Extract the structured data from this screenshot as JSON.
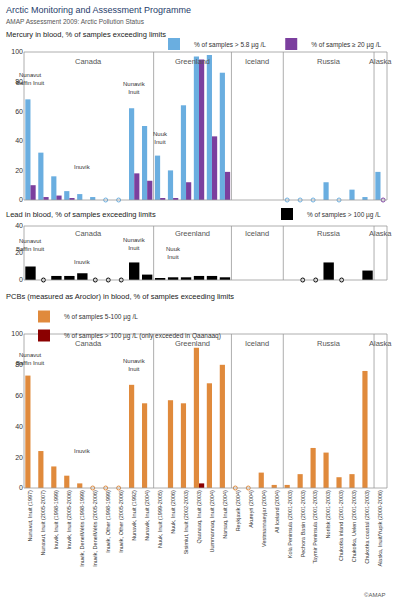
{
  "header": {
    "title": "Arctic Monitoring and Assessment Programme",
    "subtitle": "AMAP Assessment 2009: Arctic Pollution Status"
  },
  "footer": "©AMAP",
  "chart_data": [
    {
      "type": "bar",
      "title": "Mercury in blood, % of samples exceeding limits",
      "categories": [
        "Nunavut, Inuit (1997)",
        "Nunavut, Inuit (2005-2007)",
        "Inuvik, Inuit (1998-1999)",
        "Inuvik, Inuit (2005-2006)",
        "Inuvik, Dene/Métis (1998-1999)",
        "Inuvik, Dene/Métis (2005-2006)",
        "Inuvik, Other (1998-1999)",
        "Inuvik, Other (2005-2006)",
        "Nunavik, Inuit (1992)",
        "Nunavik, Inuit (2004)",
        "Nuuk, Inuit (1999-2005)",
        "Nuuk, Inuit (2006)",
        "Sisimiut, Inuit (2002-2003)",
        "Qaanaaq, Inuit (2003)",
        "Uummannaq, Inuit (2004)",
        "Narsaq, Inuit (2004)",
        "Reykjavík (2004)",
        "Akureyri (2004)",
        "Vestmannaeyjar (2004)",
        "All Iceland (2004)",
        "Kola Peninsula (2001-2003)",
        "Pechora Basin (2001-2003)",
        "Taymir Peninsula (2001-2003)",
        "Norilsk (2001-2003)",
        "Chukotka inland (2001-2003)",
        "Chukotka, Uelen (2001-2003)",
        "Chukotka coastal (2001-2003)",
        "Alaska, Inuit/Yupik (2000-2006)"
      ],
      "regions": [
        "Canada",
        "Canada",
        "Canada",
        "Canada",
        "Canada",
        "Canada",
        "Canada",
        "Canada",
        "Canada",
        "Canada",
        "Greenland",
        "Greenland",
        "Greenland",
        "Greenland",
        "Greenland",
        "Greenland",
        "Iceland",
        "Iceland",
        "Iceland",
        "Iceland",
        "Russia",
        "Russia",
        "Russia",
        "Russia",
        "Russia",
        "Russia",
        "Russia",
        "Alaska"
      ],
      "series": [
        {
          "name": "% of samples > 5.8 µg /L",
          "color": "#6aaee0",
          "values": [
            68,
            32,
            16,
            6,
            4,
            2,
            0,
            0,
            62,
            50,
            30,
            20,
            64,
            97,
            98,
            86,
            null,
            null,
            null,
            null,
            0,
            0,
            0,
            12,
            0,
            7,
            2,
            19
          ]
        },
        {
          "name": "% of samples ≥ 20 µg /L",
          "color": "#7b3f9e",
          "values": [
            10,
            2,
            3,
            1,
            null,
            null,
            null,
            null,
            18,
            13,
            1,
            1,
            12,
            95,
            43,
            19,
            null,
            null,
            null,
            null,
            null,
            null,
            null,
            null,
            null,
            null,
            null,
            0
          ]
        }
      ],
      "ylim": [
        0,
        100
      ],
      "yticks": [
        0,
        20,
        40,
        60,
        80,
        100
      ],
      "grid": false,
      "legend": "top right",
      "tick_labels": "y",
      "marker": "circle-open",
      "annotations": [
        {
          "lines": [
            "Nunavut",
            "Baffin Inuit"
          ],
          "category": "Nunavut, Inuit (1997)",
          "y": 82
        },
        {
          "lines": [
            "Inuvik"
          ],
          "category": "Inuvik, Dene/Métis (1998-1999)",
          "y": 22
        },
        {
          "lines": [
            "Nunavik",
            "Inuit"
          ],
          "category": "Nunavik, Inuit (1992)",
          "y": 76
        },
        {
          "lines": [
            "Nuuk",
            "Inuit"
          ],
          "category": "Nuuk, Inuit (1999-2005)",
          "y": 42
        }
      ]
    },
    {
      "type": "bar",
      "title": "Lead in blood, % of samples exceeding limits",
      "categories": [
        "Nunavut, Inuit (1997)",
        "Nunavut, Inuit (2005-2007)",
        "Inuvik, Inuit (1998-1999)",
        "Inuvik, Inuit (2005-2006)",
        "Inuvik, Dene/Métis (1998-1999)",
        "Inuvik, Dene/Métis (2005-2006)",
        "Inuvik, Other (1998-1999)",
        "Inuvik, Other (2005-2006)",
        "Nunavik, Inuit (1992)",
        "Nunavik, Inuit (2004)",
        "Nuuk, Inuit (1999-2005)",
        "Nuuk, Inuit (2006)",
        "Sisimiut, Inuit (2002-2003)",
        "Qaanaaq, Inuit (2003)",
        "Uummannaq, Inuit (2004)",
        "Narsaq, Inuit (2004)",
        "Reykjavík (2004)",
        "Akureyri (2004)",
        "Vestmannaeyjar (2004)",
        "All Iceland (2004)",
        "Kola Peninsula (2001-2003)",
        "Pechora Basin (2001-2003)",
        "Taymir Peninsula (2001-2003)",
        "Norilsk (2001-2003)",
        "Chukotka inland (2001-2003)",
        "Chukotka, Uelen (2001-2003)",
        "Chukotka coastal (2001-2003)",
        "Alaska, Inuit/Yupik (2000-2006)"
      ],
      "regions": [
        "Canada",
        "Canada",
        "Canada",
        "Canada",
        "Canada",
        "Canada",
        "Canada",
        "Canada",
        "Canada",
        "Canada",
        "Greenland",
        "Greenland",
        "Greenland",
        "Greenland",
        "Greenland",
        "Greenland",
        "Iceland",
        "Iceland",
        "Iceland",
        "Iceland",
        "Russia",
        "Russia",
        "Russia",
        "Russia",
        "Russia",
        "Russia",
        "Russia",
        "Alaska"
      ],
      "series": [
        {
          "name": "% of samples > 100 µg /L",
          "color": "#000000",
          "values": [
            10,
            0,
            3,
            3,
            5,
            0,
            0,
            0,
            13,
            4,
            1,
            2,
            2,
            3,
            3,
            2,
            null,
            null,
            null,
            null,
            null,
            0,
            0,
            13,
            0,
            null,
            7,
            null
          ]
        }
      ],
      "ylim": [
        0,
        40
      ],
      "yticks": [
        0,
        20,
        40
      ],
      "grid": false,
      "legend": "top right",
      "tick_labels": "y",
      "marker": "circle-open",
      "annotations": [
        {
          "lines": [
            "Nunavut",
            "Baffin Inuit"
          ],
          "category": "Nunavut, Inuit (1997)",
          "y": 26
        },
        {
          "lines": [
            "Inuvik"
          ],
          "category": "Inuvik, Dene/Métis (1998-1999)",
          "y": 13
        },
        {
          "lines": [
            "Nunavik",
            "Inuit"
          ],
          "category": "Nunavik, Inuit (1992)",
          "y": 27
        },
        {
          "lines": [
            "Nuuk",
            "Inuit"
          ],
          "category": "Nuuk, Inuit (2006)",
          "y": 20
        }
      ]
    },
    {
      "type": "bar",
      "title": "PCBs (measured as Aroclor) in blood, % of samples exceeding limits",
      "categories": [
        "Nunavut, Inuit (1997)",
        "Nunavut, Inuit (2005-2007)",
        "Inuvik, Inuit (1998-1999)",
        "Inuvik, Inuit (2005-2006)",
        "Inuvik, Dene/Métis (1998-1999)",
        "Inuvik, Dene/Métis (2005-2006)",
        "Inuvik, Other (1998-1999)",
        "Inuvik, Other (2005-2006)",
        "Nunavik, Inuit (1992)",
        "Nunavik, Inuit (2004)",
        "Nuuk, Inuit (1999-2005)",
        "Nuuk, Inuit (2006)",
        "Sisimiut, Inuit (2002-2003)",
        "Qaanaaq, Inuit (2003)",
        "Uummannaq, Inuit (2004)",
        "Narsaq, Inuit (2004)",
        "Reykjavík (2004)",
        "Akureyri (2004)",
        "Vestmannaeyjar (2004)",
        "All Iceland (2004)",
        "Kola Peninsula (2001-2003)",
        "Pechora Basin (2001-2003)",
        "Taymir Peninsula (2001-2003)",
        "Norilsk (2001-2003)",
        "Chukotka inland (2001-2003)",
        "Chukotka, Uelen (2001-2003)",
        "Chukotka coastal (2001-2003)",
        "Alaska, Inuit/Yupik (2000-2006)"
      ],
      "regions": [
        "Canada",
        "Canada",
        "Canada",
        "Canada",
        "Canada",
        "Canada",
        "Canada",
        "Canada",
        "Canada",
        "Canada",
        "Greenland",
        "Greenland",
        "Greenland",
        "Greenland",
        "Greenland",
        "Greenland",
        "Iceland",
        "Iceland",
        "Iceland",
        "Iceland",
        "Russia",
        "Russia",
        "Russia",
        "Russia",
        "Russia",
        "Russia",
        "Russia",
        "Alaska"
      ],
      "series": [
        {
          "name": "% of samples 5-100 µg /L",
          "color": "#e08a3c",
          "values": [
            73,
            24,
            14,
            8,
            3,
            0,
            0,
            0,
            67,
            55,
            null,
            57,
            55,
            91,
            68,
            80,
            0,
            0,
            10,
            2,
            2,
            9,
            26,
            23,
            7,
            9,
            76,
            null
          ]
        },
        {
          "name": "% of samples > 100 µg /L (only exceeded in Qaanaaq)",
          "color": "#8b0000",
          "values": [
            null,
            null,
            null,
            null,
            null,
            null,
            null,
            null,
            null,
            null,
            null,
            null,
            null,
            3,
            null,
            null,
            null,
            null,
            null,
            null,
            null,
            null,
            null,
            null,
            null,
            null,
            null,
            null
          ]
        }
      ],
      "ylim": [
        0,
        100
      ],
      "yticks": [
        0,
        20,
        40,
        60,
        80,
        100
      ],
      "grid": false,
      "legend": "top left",
      "tick_labels": true,
      "marker": "circle-open",
      "annotations": [
        {
          "lines": [
            "Nunavut",
            "Baffin Inuit"
          ],
          "category": "Nunavut, Inuit (1997)",
          "y": 84
        },
        {
          "lines": [
            "Inuvik"
          ],
          "category": "Inuvik, Dene/Métis (1998-1999)",
          "y": 24
        },
        {
          "lines": [
            "Nunavik",
            "Inuit"
          ],
          "category": "Nunavik, Inuit (1992)",
          "y": 80
        }
      ]
    }
  ]
}
